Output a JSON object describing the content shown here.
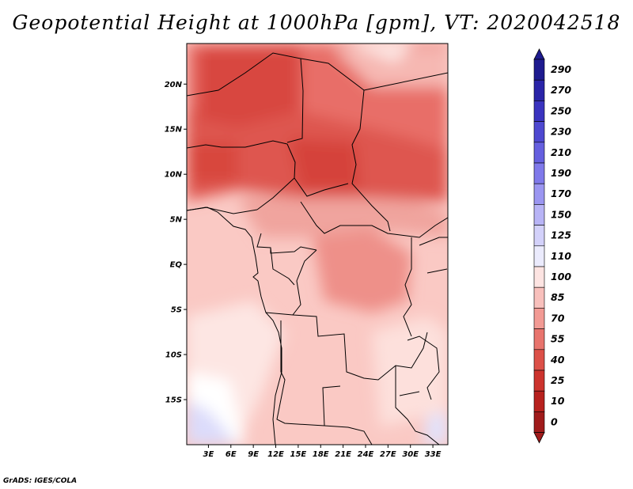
{
  "title": "Geopotential Height at 1000hPa [gpm], VT: 2020042518",
  "credit": "GrADS: IGES/COLA",
  "map": {
    "region": "Central Africa",
    "lat_labels": [
      "20N",
      "15N",
      "10N",
      "5N",
      "EQ",
      "5S",
      "10S",
      "15S"
    ],
    "lat_values": [
      20,
      15,
      10,
      5,
      0,
      -5,
      -10,
      -15
    ],
    "lon_labels": [
      "3E",
      "6E",
      "9E",
      "12E",
      "15E",
      "18E",
      "21E",
      "24E",
      "27E",
      "30E",
      "33E"
    ],
    "lon_values": [
      3,
      6,
      9,
      12,
      15,
      18,
      21,
      24,
      27,
      30,
      33
    ]
  },
  "colorbar": {
    "labels": [
      "290",
      "270",
      "250",
      "230",
      "210",
      "190",
      "170",
      "150",
      "125",
      "110",
      "100",
      "85",
      "70",
      "55",
      "40",
      "25",
      "10",
      "0"
    ],
    "colors": [
      "#1e1b8f",
      "#2a24a8",
      "#3a33bf",
      "#4e48d0",
      "#655fdf",
      "#7f79ea",
      "#9b96f1",
      "#b8b4f6",
      "#d3d1fa",
      "#ebebfd",
      "#fde4e2",
      "#f8c0bc",
      "#f29a94",
      "#e8746d",
      "#dc5048",
      "#cc332d",
      "#b7211e",
      "#a01b1b"
    ]
  }
}
